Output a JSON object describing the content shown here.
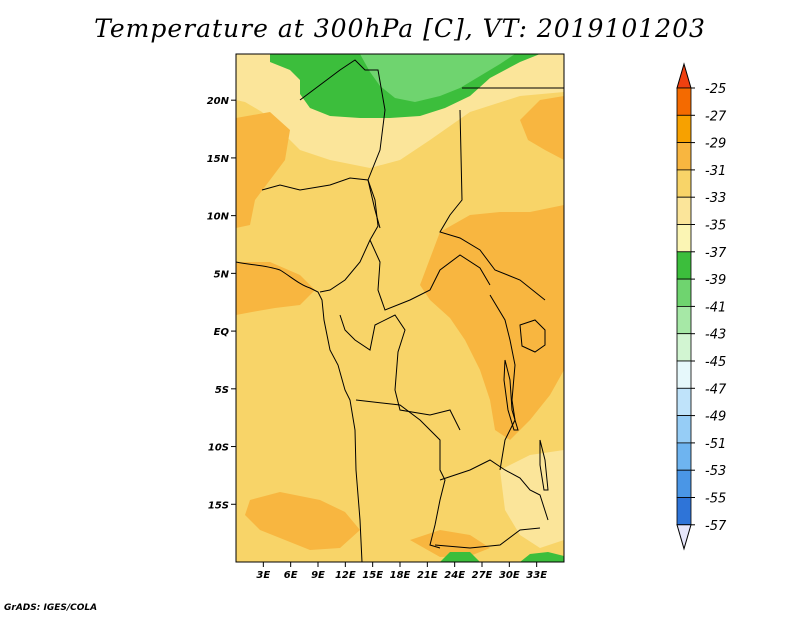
{
  "title": "Temperature at 300hPa [C], VT: 2019101203",
  "credit": "GrADS: IGES/COLA",
  "map": {
    "lon_range": [
      0,
      36
    ],
    "lat_range": [
      -20,
      24
    ],
    "lat_ticks": [
      {
        "value": 20,
        "label": "20N"
      },
      {
        "value": 15,
        "label": "15N"
      },
      {
        "value": 10,
        "label": "10N"
      },
      {
        "value": 5,
        "label": "5N"
      },
      {
        "value": 0,
        "label": "EQ"
      },
      {
        "value": -5,
        "label": "5S"
      },
      {
        "value": -10,
        "label": "10S"
      },
      {
        "value": -15,
        "label": "15S"
      }
    ],
    "lon_ticks": [
      {
        "value": 3,
        "label": "3E"
      },
      {
        "value": 6,
        "label": "6E"
      },
      {
        "value": 9,
        "label": "9E"
      },
      {
        "value": 12,
        "label": "12E"
      },
      {
        "value": 15,
        "label": "15E"
      },
      {
        "value": 18,
        "label": "18E"
      },
      {
        "value": 21,
        "label": "21E"
      },
      {
        "value": 24,
        "label": "24E"
      },
      {
        "value": 27,
        "label": "27E"
      },
      {
        "value": 30,
        "label": "30E"
      },
      {
        "value": 33,
        "label": "33E"
      }
    ]
  },
  "colorbar": {
    "labels": [
      "-25",
      "-27",
      "-29",
      "-31",
      "-33",
      "-35",
      "-37",
      "-39",
      "-41",
      "-43",
      "-45",
      "-47",
      "-49",
      "-51",
      "-53",
      "-55",
      "-57"
    ],
    "colors": [
      "#f04010",
      "#f46a00",
      "#f7a100",
      "#f8b640",
      "#f8d468",
      "#fbe59a",
      "#fbf5b4",
      "#3cbe3c",
      "#6fd46f",
      "#a6e8a6",
      "#d2f5d2",
      "#e6f8fb",
      "#bfe3fa",
      "#96cdf6",
      "#6eb4f0",
      "#4a96e6",
      "#2e74d8",
      "#1a55c0",
      "#0e38a8",
      "#050f6b",
      "#e6e6fa"
    ]
  }
}
